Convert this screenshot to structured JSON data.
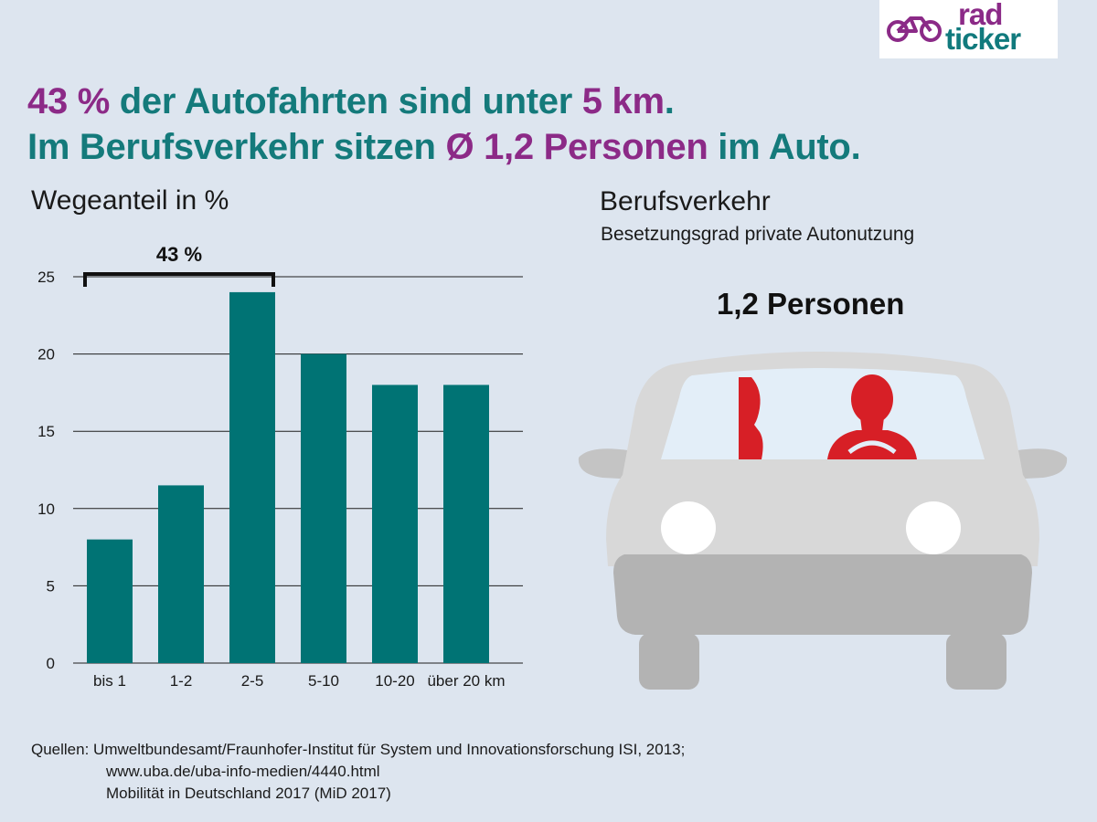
{
  "logo": {
    "rad": "rad",
    "ticker": "ticker"
  },
  "headline": {
    "line1": {
      "accent1": "43 %",
      "text1": " der Autofahrten sind unter ",
      "accent2": "5 km",
      "text2": "."
    },
    "line2": {
      "text1": "Im Berufsverkehr sitzen ",
      "accent1": "Ø 1,2 Personen",
      "text2": " im Auto."
    }
  },
  "chart_data": {
    "type": "bar",
    "title": "Wegeanteil in %",
    "categories": [
      "bis 1",
      "1-2",
      "2-5",
      "5-10",
      "10-20",
      "über 20 km"
    ],
    "values": [
      8,
      11.5,
      24,
      20,
      18,
      18
    ],
    "ylim": [
      0,
      25
    ],
    "yticks": [
      0,
      5,
      10,
      15,
      20,
      25
    ],
    "grid": true,
    "bar_color": "#007374",
    "annotation": {
      "label": "43 %",
      "from_category": "bis 1",
      "to_category": "2-5"
    }
  },
  "right_panel": {
    "title": "Berufsverkehr",
    "subtitle": "Besetzungsgrad private Autonutzung",
    "value_label": "1,2 Personen",
    "person_color": "#d71f26"
  },
  "sources": {
    "line1": "Quellen: Umweltbundesamt/Fraunhofer-Institut für System und Innovationsforschung ISI, 2013;",
    "line2": "www.uba.de/uba-info-medien/4440.html",
    "line3": "Mobilität in Deutschland 2017 (MiD 2017)"
  },
  "colors": {
    "teal": "#147a7b",
    "purple": "#8c2a87",
    "background": "#dde5ef"
  }
}
